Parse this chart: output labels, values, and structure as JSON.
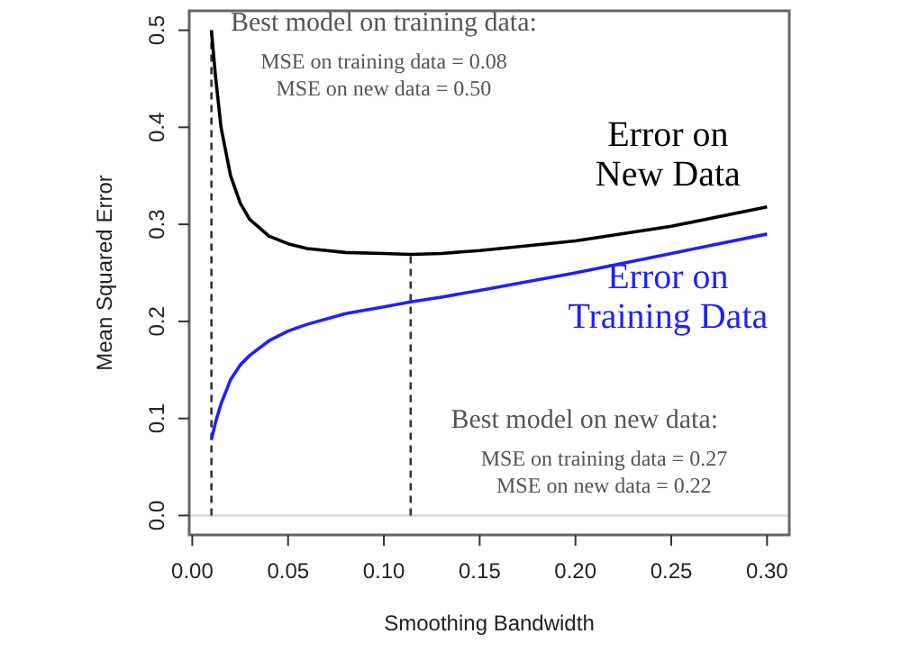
{
  "chart_data": {
    "type": "line",
    "xlabel": "Smoothing Bandwidth",
    "ylabel": "Mean Squared Error",
    "xlim": [
      -0.0016,
      0.3116
    ],
    "ylim": [
      -0.02,
      0.52
    ],
    "xticks": [
      {
        "value": 0,
        "label": "0.00"
      },
      {
        "value": 0.05,
        "label": "0.05"
      },
      {
        "value": 0.1,
        "label": "0.10"
      },
      {
        "value": 0.15,
        "label": "0.15"
      },
      {
        "value": 0.2,
        "label": "0.20"
      },
      {
        "value": 0.25,
        "label": "0.25"
      },
      {
        "value": 0.3,
        "label": "0.30"
      }
    ],
    "yticks": [
      {
        "value": 0,
        "label": "0.0"
      },
      0.1,
      0.2,
      0.3,
      0.4,
      0.5
    ],
    "marker": "none",
    "line_style": "solid",
    "x": [
      0.01,
      0.012,
      0.015,
      0.02,
      0.025,
      0.03,
      0.04,
      0.05,
      0.06,
      0.08,
      0.1,
      0.114,
      0.13,
      0.15,
      0.2,
      0.25,
      0.3
    ],
    "series": [
      {
        "name": "Error on\nNew Data",
        "color": "#000000",
        "values": [
          0.5,
          0.455,
          0.4,
          0.35,
          0.322,
          0.305,
          0.288,
          0.28,
          0.275,
          0.271,
          0.27,
          0.269,
          0.27,
          0.273,
          0.283,
          0.298,
          0.318
        ]
      },
      {
        "name": "Error on\nTraining Data",
        "color": "#1f1fff",
        "values": [
          0.078,
          0.095,
          0.115,
          0.14,
          0.155,
          0.165,
          0.18,
          0.19,
          0.197,
          0.208,
          0.215,
          0.22,
          0.225,
          0.232,
          0.25,
          0.27,
          0.29
        ]
      }
    ],
    "ref_lines": [
      {
        "axis": "y",
        "value": 0,
        "color": "#d9d9d9",
        "line_style": "solid"
      },
      {
        "axis": "x",
        "value": 0.01,
        "color": "#333333",
        "line_style": "dashed"
      },
      {
        "axis": "x",
        "value": 0.114,
        "color": "#333333",
        "line_style": "dashed"
      }
    ],
    "annotations": [
      "Best model on training data:\nMSE on training data = 0.08\nMSE on new data = 0.50",
      "Best model on new data:\nMSE on training data = 0.27\nMSE on new data = 0.22"
    ]
  }
}
